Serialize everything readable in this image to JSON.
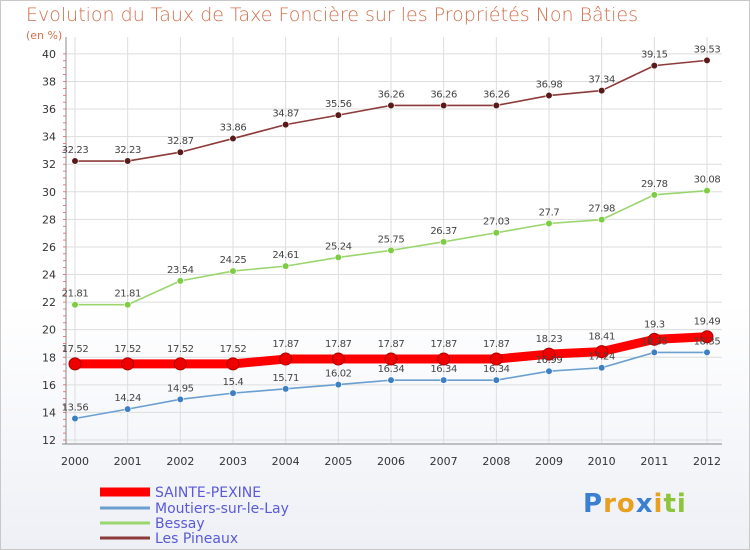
{
  "chart_data": {
    "type": "line",
    "title": "Evolution du Taux de Taxe Foncière sur les Propriétés Non Bâties",
    "ylabel": "(en %)",
    "xlabel": "",
    "x": [
      "2000",
      "2001",
      "2002",
      "2003",
      "2004",
      "2005",
      "2006",
      "2007",
      "2008",
      "2009",
      "2010",
      "2011",
      "2012"
    ],
    "yticks": [
      "12",
      "14",
      "16",
      "18",
      "20",
      "22",
      "24",
      "26",
      "28",
      "30",
      "32",
      "34",
      "36",
      "38",
      "40"
    ],
    "ylim": [
      12,
      40.5
    ],
    "grid": true,
    "legend": "bottom-left",
    "series": [
      {
        "name": "SAINTE-PEXINE",
        "color": "#ff0000",
        "marker": "#ee0000",
        "values": [
          17.52,
          17.52,
          17.52,
          17.52,
          17.87,
          17.87,
          17.87,
          17.87,
          17.87,
          18.23,
          18.41,
          19.3,
          19.49
        ],
        "labels": [
          "17.52",
          "17.52",
          "17.52",
          "17.52",
          "17.87",
          "17.87",
          "17.87",
          "17.87",
          "17.87",
          "18.23",
          "18.41",
          "19.3",
          "19.49"
        ]
      },
      {
        "name": "Moutiers-sur-le-Lay",
        "color": "#6a9fcf",
        "marker": "#3d7fc4",
        "values": [
          13.56,
          14.24,
          14.95,
          15.4,
          15.71,
          16.02,
          16.34,
          16.34,
          16.34,
          16.99,
          17.24,
          18.35,
          18.35
        ],
        "labels": [
          "13.56",
          "14.24",
          "14.95",
          "15.4",
          "15.71",
          "16.02",
          "16.34",
          "16.34",
          "16.34",
          "16.99",
          "17.24",
          "18.35",
          "18.35"
        ]
      },
      {
        "name": "Bessay",
        "color": "#9bd56e",
        "marker": "#7dcc43",
        "values": [
          21.81,
          21.81,
          23.54,
          24.25,
          24.61,
          25.24,
          25.75,
          26.37,
          27.03,
          27.7,
          27.98,
          29.78,
          30.08
        ],
        "labels": [
          "21.81",
          "21.81",
          "23.54",
          "24.25",
          "24.61",
          "25.24",
          "25.75",
          "26.37",
          "27.03",
          "27.7",
          "27.98",
          "29.78",
          "30.08"
        ]
      },
      {
        "name": "Les Pineaux",
        "color": "#8c3a3a",
        "marker": "#5a1a1a",
        "values": [
          32.23,
          32.23,
          32.87,
          33.86,
          34.87,
          35.56,
          36.26,
          36.26,
          36.26,
          36.98,
          37.34,
          39.15,
          39.53
        ],
        "labels": [
          "32.23",
          "32.23",
          "32.87",
          "33.86",
          "34.87",
          "35.56",
          "36.26",
          "36.26",
          "36.26",
          "36.98",
          "37.34",
          "39.15",
          "39.53"
        ]
      }
    ]
  },
  "logo": {
    "letters": [
      "P",
      "r",
      "o",
      "x",
      "i",
      "t",
      "i"
    ],
    "colors": [
      "#3a7fd0",
      "#e8a020",
      "#e8a020",
      "#3a7fd0",
      "#e8a020",
      "#8cc43a",
      "#8cc43a"
    ]
  },
  "colors": {
    "title": "#d0704e",
    "grid": "#dddddd",
    "axis": "#888888",
    "legend_text": "#5a5ad8"
  }
}
